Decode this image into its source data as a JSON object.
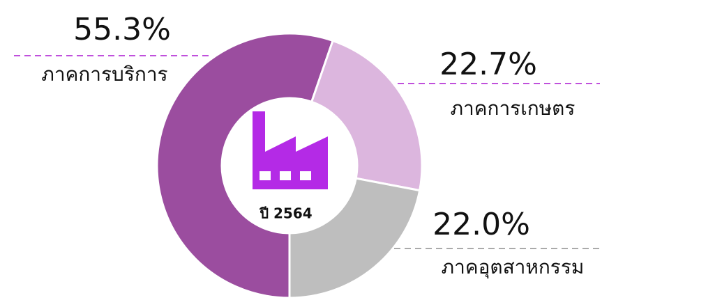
{
  "chart_data": {
    "type": "donut",
    "categories": [
      "ภาคการบริการ",
      "ภาคการเกษตร",
      "ภาคอุตสาหกรรม"
    ],
    "values": [
      55.3,
      22.7,
      22.0
    ],
    "value_labels": [
      "55.3%",
      "22.7%",
      "22.0%"
    ],
    "colors": [
      "#9b4d9f",
      "#dcb6de",
      "#bebebe"
    ],
    "center_label": "ปี 2564"
  }
}
